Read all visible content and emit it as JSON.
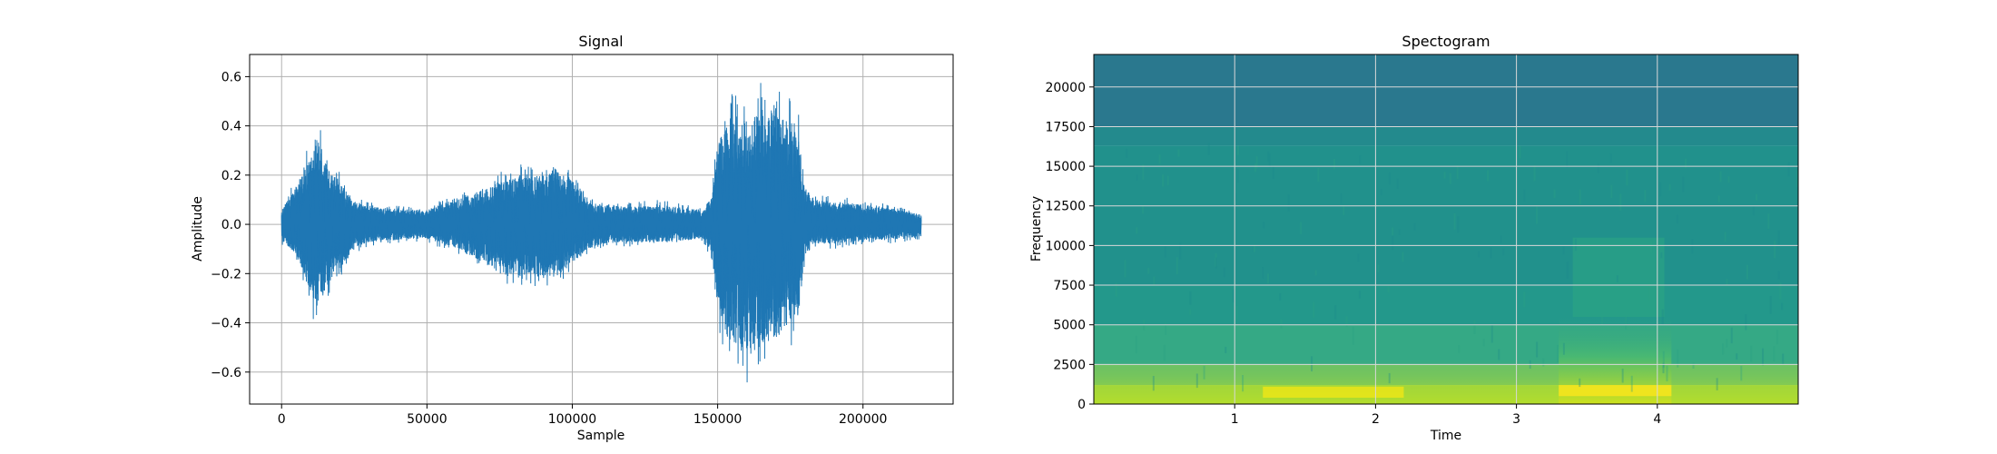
{
  "chart_data": [
    {
      "type": "line",
      "title": "Signal",
      "xlabel": "Sample",
      "ylabel": "Amplitude",
      "xlim": [
        -11000,
        231000
      ],
      "ylim": [
        -0.73,
        0.69
      ],
      "xticks": [
        0,
        50000,
        100000,
        150000,
        200000
      ],
      "xtick_labels": [
        "0",
        "50000",
        "100000",
        "150000",
        "200000"
      ],
      "yticks": [
        -0.6,
        -0.4,
        -0.2,
        0.0,
        0.2,
        0.4,
        0.6
      ],
      "ytick_labels": [
        "−0.6",
        "−0.4",
        "−0.2",
        "0.0",
        "0.2",
        "0.4",
        "0.6"
      ],
      "grid": true,
      "color": "#1f77b4",
      "envelope": {
        "sample": [
          0,
          5000,
          10000,
          12000,
          16000,
          20000,
          25000,
          30000,
          40000,
          50000,
          55000,
          60000,
          65000,
          70000,
          75000,
          80000,
          85000,
          90000,
          95000,
          100000,
          105000,
          110000,
          120000,
          130000,
          140000,
          145000,
          148000,
          150000,
          152000,
          155000,
          160000,
          165000,
          170000,
          175000,
          178000,
          180000,
          185000,
          190000,
          200000,
          210000,
          220000
        ],
        "upper": [
          0.07,
          0.2,
          0.34,
          0.47,
          0.28,
          0.22,
          0.12,
          0.09,
          0.08,
          0.07,
          0.1,
          0.12,
          0.15,
          0.18,
          0.22,
          0.24,
          0.25,
          0.25,
          0.27,
          0.22,
          0.12,
          0.1,
          0.09,
          0.1,
          0.08,
          0.07,
          0.15,
          0.4,
          0.48,
          0.56,
          0.52,
          0.6,
          0.58,
          0.52,
          0.45,
          0.18,
          0.12,
          0.12,
          0.1,
          0.08,
          0.05
        ],
        "lower": [
          -0.08,
          -0.15,
          -0.35,
          -0.43,
          -0.3,
          -0.22,
          -0.12,
          -0.09,
          -0.08,
          -0.07,
          -0.1,
          -0.12,
          -0.16,
          -0.2,
          -0.24,
          -0.28,
          -0.25,
          -0.28,
          -0.26,
          -0.2,
          -0.13,
          -0.1,
          -0.09,
          -0.09,
          -0.08,
          -0.07,
          -0.15,
          -0.42,
          -0.55,
          -0.6,
          -0.66,
          -0.62,
          -0.58,
          -0.5,
          -0.45,
          -0.15,
          -0.1,
          -0.1,
          -0.08,
          -0.08,
          -0.06
        ]
      }
    },
    {
      "type": "heatmap",
      "title": "Spectogram",
      "xlabel": "Time",
      "ylabel": "Frequency",
      "xlim": [
        0.0,
        5.0
      ],
      "ylim": [
        0,
        22050
      ],
      "xticks": [
        1,
        2,
        3,
        4
      ],
      "xtick_labels": [
        "1",
        "2",
        "3",
        "4"
      ],
      "yticks": [
        0,
        2500,
        5000,
        7500,
        10000,
        12500,
        15000,
        17500,
        20000
      ],
      "ytick_labels": [
        "0",
        "2500",
        "5000",
        "7500",
        "10000",
        "12500",
        "15000",
        "17500",
        "20000"
      ],
      "grid": true,
      "colormap": "viridis",
      "colors": {
        "dark": "#2a7886",
        "mid": "#21958c",
        "mid_upper": "#1f8b8c",
        "light": "#4ebc70",
        "bright": "#a8d93d",
        "peak": "#e0e326"
      },
      "bands": [
        {
          "freq": [
            17500,
            22050
          ],
          "color": "#2a788e"
        },
        {
          "freq": [
            16300,
            17500
          ],
          "color": "#238a8d"
        },
        {
          "freq": [
            7500,
            16300
          ],
          "color": "#21918c"
        },
        {
          "freq": [
            5000,
            7500
          ],
          "color": "#23988b"
        },
        {
          "freq": [
            2500,
            5000
          ],
          "color": "#35a985"
        },
        {
          "freq": [
            1200,
            2500
          ],
          "color": "#6cc164"
        },
        {
          "freq": [
            0,
            1200
          ],
          "color": "#b5de2b"
        }
      ],
      "bursts": [
        {
          "time": [
            3.3,
            4.1
          ],
          "freq": [
            0,
            5500
          ],
          "color": "#c8e020"
        },
        {
          "time": [
            3.4,
            4.05
          ],
          "freq": [
            5500,
            10500
          ],
          "color": "#2ea784"
        },
        {
          "time": [
            1.2,
            2.2
          ],
          "freq": [
            400,
            1100
          ],
          "color": "#e8e419"
        },
        {
          "time": [
            3.3,
            4.1
          ],
          "freq": [
            500,
            1200
          ],
          "color": "#f2e51d"
        }
      ]
    }
  ]
}
